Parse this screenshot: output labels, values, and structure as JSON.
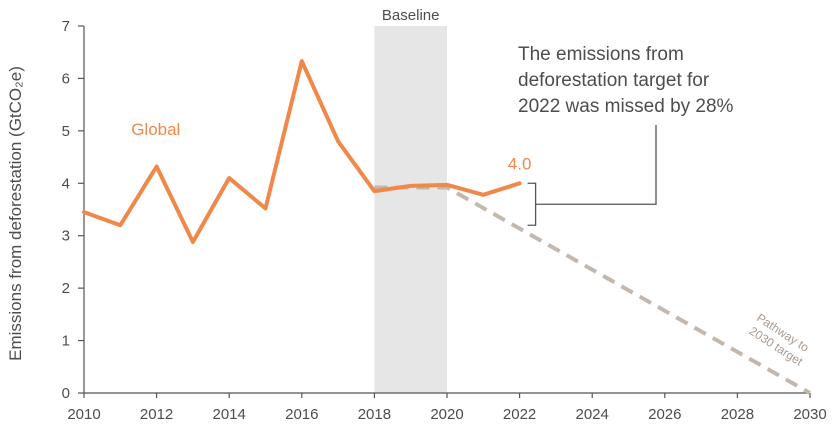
{
  "chart_data": {
    "type": "line",
    "ylabel": "Emissions from deforestation (GtCO₂e)",
    "xlim": [
      2010,
      2030
    ],
    "ylim": [
      0,
      7
    ],
    "x_ticks": [
      "2010",
      "2012",
      "2014",
      "2016",
      "2018",
      "2020",
      "2022",
      "2024",
      "2026",
      "2028",
      "2030"
    ],
    "y_ticks": [
      "0",
      "1",
      "2",
      "3",
      "4",
      "5",
      "6",
      "7"
    ],
    "grid": false,
    "series": [
      {
        "name": "Global",
        "color": "#f0884a",
        "x": [
          2010,
          2011,
          2012,
          2013,
          2014,
          2015,
          2016,
          2017,
          2018,
          2019,
          2020,
          2021,
          2022
        ],
        "y": [
          3.45,
          3.2,
          4.32,
          2.88,
          4.1,
          3.52,
          6.33,
          4.8,
          3.85,
          3.95,
          3.97,
          3.78,
          4.0
        ]
      }
    ],
    "pathway": {
      "label": "Pathway to 2030 target",
      "color": "#c3b8ae",
      "x": [
        2018,
        2020,
        2030
      ],
      "y": [
        3.92,
        3.92,
        0.0
      ]
    },
    "baseline": {
      "label": "Baseline",
      "start": 2018,
      "end": 2020,
      "color": "#e6e6e6"
    },
    "end_value_label": "4.0",
    "annotation": {
      "lines": [
        "The emissions from",
        "deforestation target for",
        "2022 was missed by 28%"
      ]
    }
  }
}
